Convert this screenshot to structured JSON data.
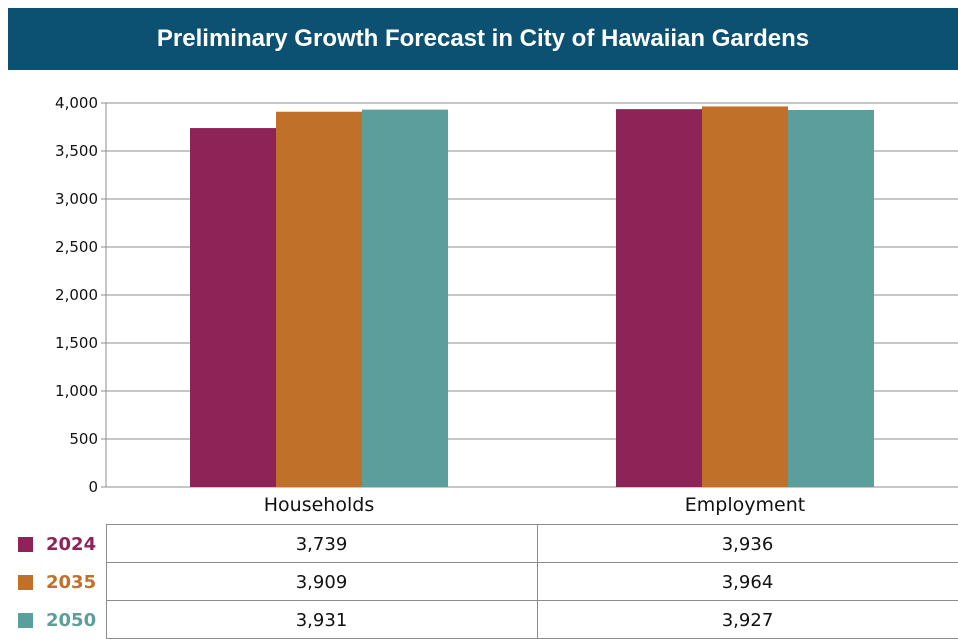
{
  "chart_data": {
    "type": "bar",
    "title": "Preliminary Growth Forecast in City of Hawaiian Gardens",
    "categories": [
      "Households",
      "Employment"
    ],
    "series": [
      {
        "name": "2024",
        "color": "#8e2358",
        "values": [
          3739,
          3936
        ],
        "display": [
          "3,739",
          "3,936"
        ]
      },
      {
        "name": "2035",
        "color": "#c07029",
        "values": [
          3909,
          3964
        ],
        "display": [
          "3,909",
          "3,964"
        ]
      },
      {
        "name": "2050",
        "color": "#5b9e9b",
        "values": [
          3931,
          3927
        ],
        "display": [
          "3,931",
          "3,927"
        ]
      }
    ],
    "ylim": [
      0,
      4000
    ],
    "yticks": [
      0,
      500,
      1000,
      1500,
      2000,
      2500,
      3000,
      3500,
      4000
    ],
    "ytick_labels": [
      "0",
      "500",
      "1,000",
      "1,500",
      "2,000",
      "2,500",
      "3,000",
      "3,500",
      "4,000"
    ],
    "grid": true,
    "legend": "data table below chart"
  }
}
